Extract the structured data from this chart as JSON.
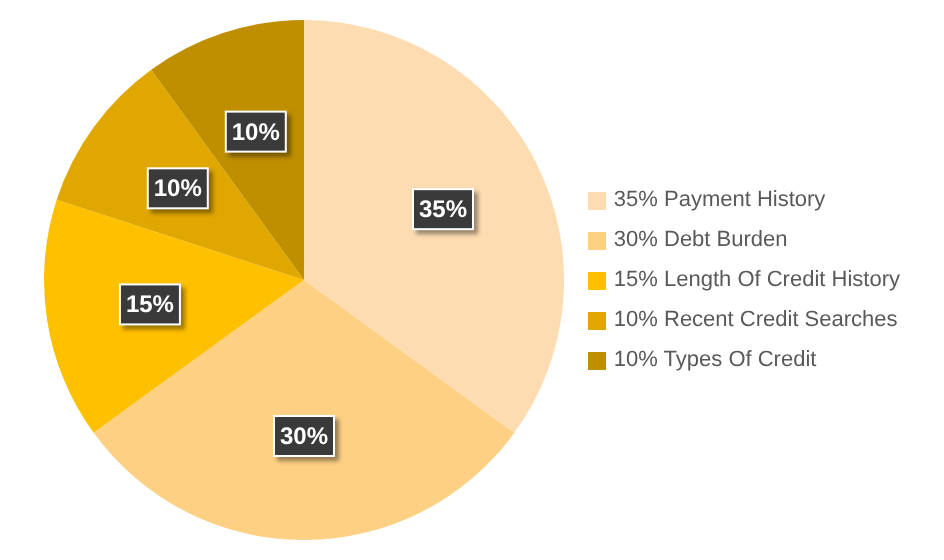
{
  "chart_data": {
    "type": "pie",
    "categories": [
      "35% Payment History",
      "30% Debt Burden",
      "15% Length Of Credit History",
      "10% Recent Credit Searches",
      "10% Types Of Credit"
    ],
    "values": [
      35,
      30,
      15,
      10,
      10
    ],
    "colors": [
      "#fddcb2",
      "#fdd084",
      "#ffc000",
      "#e0a700",
      "#bf8f00"
    ],
    "value_labels": [
      "35%",
      "30%",
      "15%",
      "10%",
      "10%"
    ],
    "legend": "right"
  }
}
